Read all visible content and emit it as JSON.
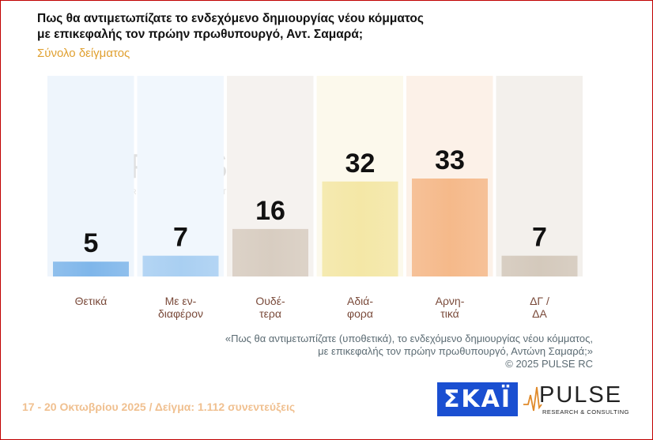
{
  "title_lines": [
    "Πως θα αντιμετωπίζατε το ενδεχόμενο δημιουργίας νέου κόμματος",
    "με επικεφαλής τον πρώην πρωθυπουργό, Αντ. Σαμαρά;"
  ],
  "subtitle": "Σύνολο δείγματος",
  "chart_data": {
    "type": "bar",
    "categories": [
      [
        "Θετικά"
      ],
      [
        "Με εν-",
        "διαφέρον"
      ],
      [
        "Ουδέ-",
        "τερα"
      ],
      [
        "Αδιά-",
        "φορα"
      ],
      [
        "Αρνη-",
        "τικά"
      ],
      [
        "ΔΓ /",
        "ΔΑ"
      ]
    ],
    "values": [
      5,
      7,
      16,
      32,
      33,
      7
    ],
    "ylim": [
      0,
      33
    ],
    "colors": [
      "#7fb6ea",
      "#a9cff2",
      "#d8cdc1",
      "#f4e7a6",
      "#f5b98a",
      "#d4c9bc"
    ],
    "bg_colors": [
      "#eef5fc",
      "#f1f7fd",
      "#f5f2ef",
      "#fcf9ec",
      "#fcf1e8",
      "#f3f0ec"
    ]
  },
  "note_lines": [
    "«Πως θα αντιμετωπίζατε (υποθετικά), το ενδεχόμενο δημιουργίας νέου κόμματος,",
    "με επικεφαλής τον πρώην πρωθυπουργό, Αντώνη Σαμαρά;»",
    "©  2025  PULSE RC"
  ],
  "footer": "17 - 20 Οκτωβρίου 2025  /  Δείγμα:  1.112 συνεντεύξεις",
  "logos": {
    "skai": "ΣΚΑΪ",
    "pulse_word": "PULSE",
    "pulse_sub": "RESEARCH & CONSULTING"
  }
}
